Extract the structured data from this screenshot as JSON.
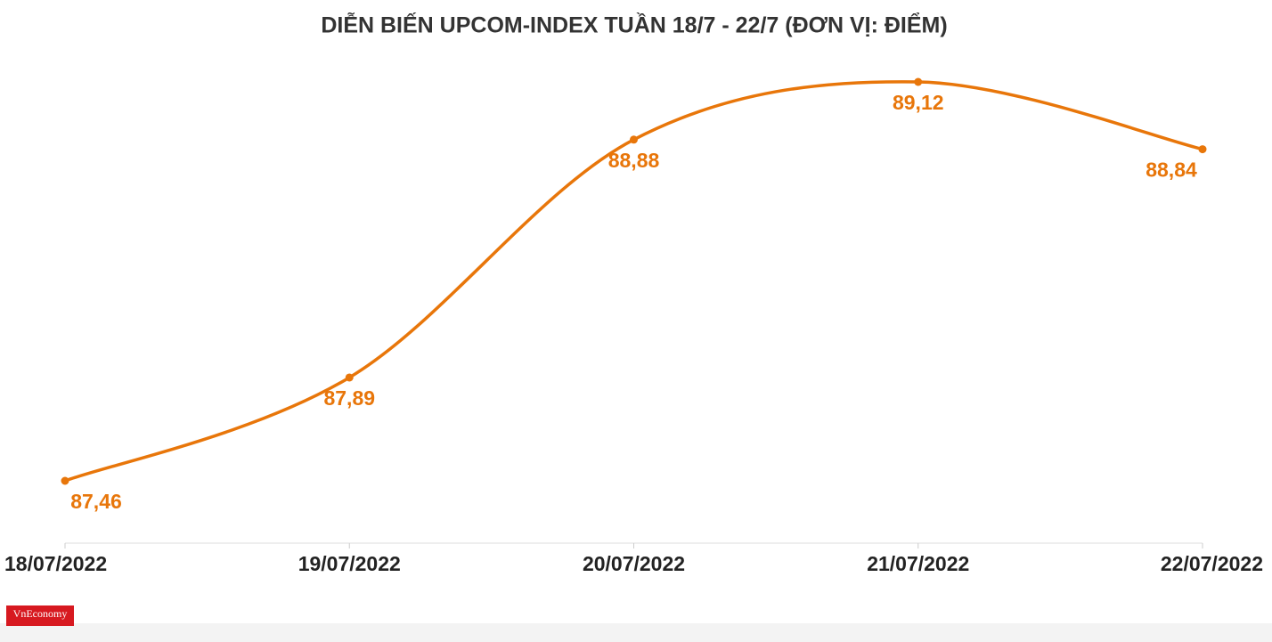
{
  "chart_data": {
    "type": "line",
    "title": "DIỄN BIẾN UPCOM-INDEX TUẦN 18/7 - 22/7 (ĐƠN VỊ: ĐIỂM)",
    "categories": [
      "18/07/2022",
      "19/07/2022",
      "20/07/2022",
      "21/07/2022",
      "22/07/2022"
    ],
    "values": [
      87.46,
      87.89,
      88.88,
      89.12,
      88.84
    ],
    "value_labels": [
      "87,46",
      "87,89",
      "88,88",
      "89,12",
      "88,84"
    ],
    "color": "#e8760a",
    "logo": "VnEconomy"
  }
}
